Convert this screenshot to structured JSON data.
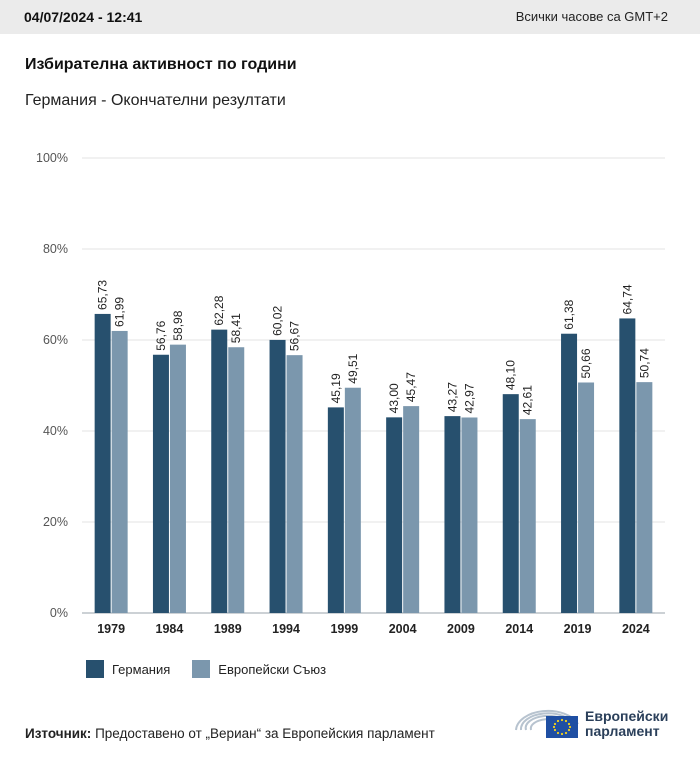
{
  "header": {
    "datetime": "04/07/2024 - 12:41",
    "timezone": "Всички часове са GMT+2"
  },
  "title": "Избирателна активност по години",
  "subtitle": "Германия - Окончателни резултати",
  "chart_data": {
    "type": "bar",
    "categories": [
      "1979",
      "1984",
      "1989",
      "1994",
      "1999",
      "2004",
      "2009",
      "2014",
      "2019",
      "2024"
    ],
    "series": [
      {
        "name": "Германия",
        "color": "#27506e",
        "values": [
          65.73,
          56.76,
          62.28,
          60.02,
          45.19,
          43.0,
          43.27,
          48.1,
          61.38,
          64.74
        ]
      },
      {
        "name": "Европейски Съюз",
        "color": "#7b97ad",
        "values": [
          61.99,
          58.98,
          58.41,
          56.67,
          49.51,
          45.47,
          42.97,
          42.61,
          50.66,
          50.74
        ]
      }
    ],
    "data_labels": [
      [
        "65,73",
        "56,76",
        "62,28",
        "60,02",
        "45,19",
        "43,00",
        "43,27",
        "48,10",
        "61,38",
        "64,74"
      ],
      [
        "61,99",
        "58,98",
        "58,41",
        "56,67",
        "49,51",
        "45,47",
        "42,97",
        "42,61",
        "50,66",
        "50,74"
      ]
    ],
    "ylim": [
      0,
      100
    ],
    "yticks": [
      0,
      20,
      40,
      60,
      80,
      100
    ],
    "ytick_labels": [
      "0%",
      "20%",
      "40%",
      "60%",
      "80%",
      "100%"
    ],
    "grid": true,
    "legend": "bottom-left"
  },
  "legend": {
    "items": [
      "Германия",
      "Европейски Съюз"
    ]
  },
  "footer": {
    "source_label": "Източник:",
    "source_text": " Предоставено от „Вериан“ за Европейския парламент",
    "logo_line1": "Европейски",
    "logo_line2": "парламент"
  }
}
